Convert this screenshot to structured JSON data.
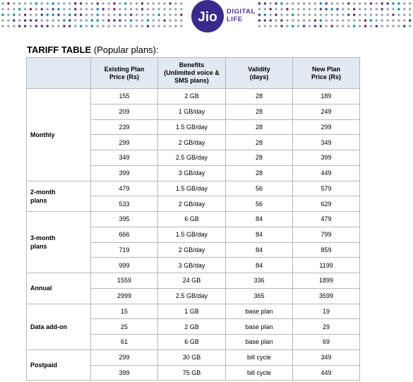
{
  "header": {
    "brand_logo": "Jio",
    "brand_line1": "DIGITAL",
    "brand_line2": "LIFE",
    "dot_colors": [
      "#9aa3ad",
      "#7a1c5d",
      "#3b3f8f",
      "#0b8ea8",
      "#5b2a86"
    ]
  },
  "title": {
    "bold": "TARIFF TABLE",
    "normal": " (Popular plans):"
  },
  "table": {
    "columns": [
      "",
      "Existing Plan Price (Rs)",
      "Benefits (Unlimited voice & SMS plans)",
      "Validity (days)",
      "New Plan Price (Rs)"
    ],
    "column_lines": [
      [],
      [
        "Existing Plan",
        "Price (Rs)"
      ],
      [
        "Benefits",
        "(Unlimited voice &",
        "SMS plans)"
      ],
      [
        "Validity",
        "(days)"
      ],
      [
        "New Plan",
        "Price (Rs)"
      ]
    ],
    "groups": [
      {
        "category_lines": [
          "Monthly"
        ],
        "rows": [
          [
            "155",
            "2 GB",
            "28",
            "189"
          ],
          [
            "209",
            "1 GB/day",
            "28",
            "249"
          ],
          [
            "239",
            "1.5 GB/day",
            "28",
            "299"
          ],
          [
            "299",
            "2 GB/day",
            "28",
            "349"
          ],
          [
            "349",
            "2.5 GB/day",
            "28",
            "399"
          ],
          [
            "399",
            "3 GB/day",
            "28",
            "449"
          ]
        ]
      },
      {
        "category_lines": [
          "2-month",
          "plans"
        ],
        "rows": [
          [
            "479",
            "1.5 GB/day",
            "56",
            "579"
          ],
          [
            "533",
            "2 GB/day",
            "56",
            "629"
          ]
        ]
      },
      {
        "category_lines": [
          "3-month",
          "plans"
        ],
        "rows": [
          [
            "395",
            "6 GB",
            "84",
            "479"
          ],
          [
            "666",
            "1.5 GB/day",
            "84",
            "799"
          ],
          [
            "719",
            "2 GB/day",
            "84",
            "859"
          ],
          [
            "999",
            "3 GB/day",
            "84",
            "1199"
          ]
        ]
      },
      {
        "category_lines": [
          "Annual"
        ],
        "rows": [
          [
            "1559",
            "24 GB",
            "336",
            "1899"
          ],
          [
            "2999",
            "2.5 GB/day",
            "365",
            "3599"
          ]
        ]
      },
      {
        "category_lines": [
          "Data add-on"
        ],
        "rows": [
          [
            "15",
            "1 GB",
            "base plan",
            "19"
          ],
          [
            "25",
            "2 GB",
            "base plan",
            "29"
          ],
          [
            "61",
            "6 GB",
            "base plan",
            "69"
          ]
        ]
      },
      {
        "category_lines": [
          "Postpaid"
        ],
        "rows": [
          [
            "299",
            "30 GB",
            "bill cycle",
            "349"
          ],
          [
            "399",
            "75 GB",
            "bill cycle",
            "449"
          ]
        ]
      }
    ]
  }
}
